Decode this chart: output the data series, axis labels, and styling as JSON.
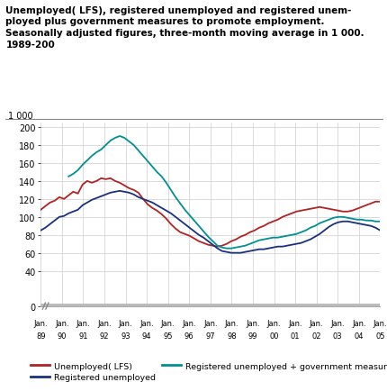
{
  "title_lines": [
    "Unemployed( LFS), registered unemployed and registered unem-",
    "ployed plus government measures to promote employment.",
    "Seasonally adjusted figures, three-month moving average in 1 000.",
    "1989-200"
  ],
  "colors": {
    "lfs": "#b22222",
    "reg": "#1a3080",
    "reg_gov": "#009090"
  },
  "year_labels": [
    "89",
    "90",
    "91",
    "92",
    "93",
    "94",
    "95",
    "96",
    "97",
    "98",
    "99",
    "00",
    "01",
    "02",
    "03",
    "04",
    "05"
  ],
  "yticks": [
    0,
    40,
    60,
    80,
    100,
    120,
    140,
    160,
    180,
    200
  ],
  "ymin": 0,
  "ymax": 205,
  "lfs_data": [
    108,
    112,
    116,
    118,
    122,
    120,
    124,
    128,
    126,
    136,
    140,
    138,
    140,
    143,
    142,
    143,
    140,
    138,
    135,
    132,
    130,
    127,
    120,
    114,
    110,
    107,
    103,
    98,
    92,
    87,
    83,
    81,
    79,
    76,
    73,
    71,
    69,
    68,
    67,
    68,
    70,
    73,
    75,
    78,
    80,
    83,
    85,
    88,
    90,
    93,
    95,
    97,
    100,
    102,
    104,
    106,
    107,
    108,
    109,
    110,
    111,
    110,
    109,
    108,
    107,
    106,
    106,
    107,
    109,
    111,
    113,
    115,
    117,
    117
  ],
  "reg_data": [
    85,
    88,
    92,
    96,
    100,
    101,
    104,
    106,
    108,
    113,
    116,
    119,
    121,
    123,
    125,
    127,
    128,
    129,
    128,
    127,
    125,
    122,
    120,
    118,
    116,
    113,
    110,
    107,
    104,
    100,
    96,
    92,
    88,
    84,
    80,
    77,
    73,
    69,
    65,
    62,
    61,
    60,
    60,
    60,
    61,
    62,
    63,
    64,
    64,
    65,
    66,
    67,
    67,
    68,
    69,
    70,
    71,
    73,
    75,
    78,
    81,
    85,
    89,
    92,
    94,
    95,
    95,
    94,
    93,
    92,
    91,
    90,
    88,
    85
  ],
  "gov_data": [
    null,
    null,
    null,
    null,
    null,
    null,
    145,
    148,
    152,
    158,
    163,
    168,
    172,
    175,
    180,
    185,
    188,
    190,
    188,
    184,
    180,
    174,
    168,
    162,
    156,
    150,
    145,
    138,
    130,
    122,
    115,
    108,
    102,
    96,
    90,
    84,
    78,
    73,
    68,
    66,
    65,
    65,
    66,
    67,
    68,
    70,
    72,
    74,
    75,
    76,
    77,
    77,
    78,
    79,
    80,
    81,
    83,
    85,
    88,
    90,
    93,
    95,
    97,
    99,
    100,
    100,
    99,
    98,
    97,
    97,
    96,
    96,
    95,
    95
  ]
}
